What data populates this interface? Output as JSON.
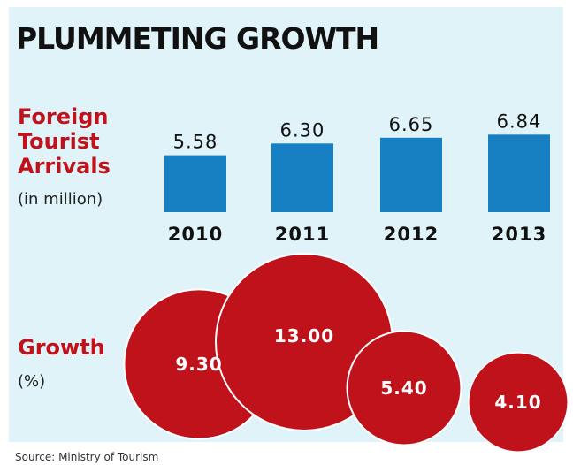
{
  "chart_data": [
    {
      "type": "bar",
      "title": "PLUMMETING GROWTH",
      "label_lines": [
        "Foreign",
        "Tourist",
        "Arrivals"
      ],
      "unit": "(in million)",
      "categories": [
        "2010",
        "2011",
        "2012",
        "2013"
      ],
      "values": [
        5.58,
        6.3,
        6.65,
        6.84
      ],
      "value_labels": [
        "5.58",
        "6.30",
        "6.65",
        "6.84"
      ],
      "bar_color": "#1680c2"
    },
    {
      "type": "bubble",
      "label": "Growth",
      "unit": "(%)",
      "categories": [
        "2010",
        "2011",
        "2012",
        "2013"
      ],
      "values": [
        9.3,
        13.0,
        5.4,
        4.1
      ],
      "value_labels": [
        "9.30",
        "13.00",
        "5.40",
        "4.10"
      ],
      "bubble_color": "#c0121b"
    }
  ],
  "source": "Source: Ministry of Tourism"
}
